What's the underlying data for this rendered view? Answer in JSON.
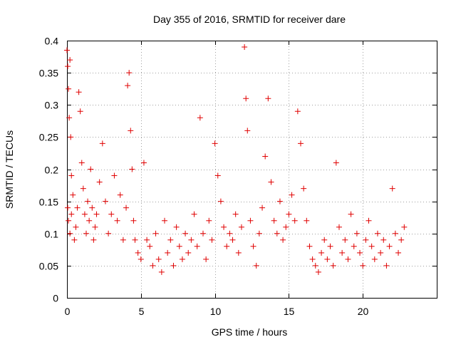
{
  "chart_data": {
    "type": "scatter",
    "title": "Day 355 of 2016, SRMTID for receiver dare",
    "xlabel": "GPS time / hours",
    "ylabel": "SRMTID / TECUs",
    "xlim": [
      0,
      25
    ],
    "ylim": [
      0,
      0.4
    ],
    "x_ticks": [
      "0",
      "5",
      "10",
      "15",
      "20"
    ],
    "y_ticks": [
      "0",
      "0.05",
      "0.1",
      "0.15",
      "0.2",
      "0.25",
      "0.3",
      "0.35",
      "0.4"
    ],
    "x_tick_values": [
      0,
      5,
      10,
      15,
      20
    ],
    "y_tick_values": [
      0,
      0.05,
      0.1,
      0.15,
      0.2,
      0.25,
      0.3,
      0.35,
      0.4
    ],
    "grid": true,
    "marker": "+",
    "color": "#e00000",
    "series": [
      {
        "name": "dare",
        "x": [
          0.0,
          0.05,
          0.1,
          0.15,
          0.2,
          0.25,
          0.3,
          0.05,
          0.1,
          0.2,
          0.3,
          0.4,
          0.5,
          0.6,
          0.7,
          0.8,
          0.9,
          1.0,
          1.1,
          1.2,
          1.3,
          1.4,
          1.5,
          1.6,
          1.7,
          1.8,
          1.9,
          2.0,
          2.2,
          2.4,
          2.6,
          2.8,
          3.0,
          3.2,
          3.4,
          3.6,
          3.8,
          4.0,
          4.1,
          4.2,
          4.3,
          4.4,
          4.5,
          4.6,
          4.8,
          5.0,
          5.2,
          5.4,
          5.6,
          5.8,
          6.0,
          6.2,
          6.4,
          6.6,
          6.8,
          7.0,
          7.2,
          7.4,
          7.6,
          7.8,
          8.0,
          8.2,
          8.4,
          8.6,
          8.8,
          9.0,
          9.2,
          9.4,
          9.6,
          9.8,
          10.0,
          10.2,
          10.4,
          10.6,
          10.8,
          11.0,
          11.2,
          11.4,
          11.6,
          11.8,
          12.0,
          12.1,
          12.2,
          12.4,
          12.6,
          12.8,
          13.0,
          13.2,
          13.4,
          13.6,
          13.8,
          14.0,
          14.2,
          14.4,
          14.6,
          14.8,
          15.0,
          15.2,
          15.4,
          15.6,
          15.8,
          16.0,
          16.2,
          16.4,
          16.6,
          16.8,
          17.0,
          17.2,
          17.4,
          17.6,
          17.8,
          18.0,
          18.2,
          18.4,
          18.6,
          18.8,
          19.0,
          19.2,
          19.4,
          19.6,
          19.8,
          20.0,
          20.2,
          20.4,
          20.6,
          20.8,
          21.0,
          21.2,
          21.4,
          21.6,
          21.8,
          22.0,
          22.2,
          22.4,
          22.6,
          22.8
        ],
        "y": [
          0.385,
          0.36,
          0.325,
          0.28,
          0.37,
          0.25,
          0.19,
          0.14,
          0.12,
          0.1,
          0.13,
          0.16,
          0.09,
          0.11,
          0.14,
          0.32,
          0.29,
          0.21,
          0.17,
          0.13,
          0.1,
          0.15,
          0.12,
          0.2,
          0.14,
          0.09,
          0.11,
          0.13,
          0.18,
          0.24,
          0.15,
          0.1,
          0.13,
          0.19,
          0.12,
          0.16,
          0.09,
          0.14,
          0.33,
          0.35,
          0.26,
          0.2,
          0.12,
          0.09,
          0.07,
          0.06,
          0.21,
          0.09,
          0.08,
          0.05,
          0.1,
          0.06,
          0.04,
          0.12,
          0.07,
          0.09,
          0.05,
          0.11,
          0.08,
          0.06,
          0.1,
          0.07,
          0.09,
          0.13,
          0.08,
          0.28,
          0.1,
          0.06,
          0.12,
          0.09,
          0.24,
          0.19,
          0.15,
          0.11,
          0.08,
          0.1,
          0.09,
          0.13,
          0.07,
          0.11,
          0.39,
          0.31,
          0.26,
          0.12,
          0.08,
          0.05,
          0.1,
          0.14,
          0.22,
          0.31,
          0.18,
          0.12,
          0.1,
          0.15,
          0.09,
          0.11,
          0.13,
          0.16,
          0.12,
          0.29,
          0.24,
          0.17,
          0.12,
          0.08,
          0.06,
          0.05,
          0.04,
          0.07,
          0.09,
          0.06,
          0.08,
          0.05,
          0.21,
          0.11,
          0.07,
          0.09,
          0.06,
          0.13,
          0.08,
          0.1,
          0.07,
          0.05,
          0.09,
          0.12,
          0.08,
          0.06,
          0.1,
          0.07,
          0.09,
          0.05,
          0.08,
          0.17,
          0.1,
          0.07,
          0.09,
          0.11
        ]
      }
    ]
  }
}
